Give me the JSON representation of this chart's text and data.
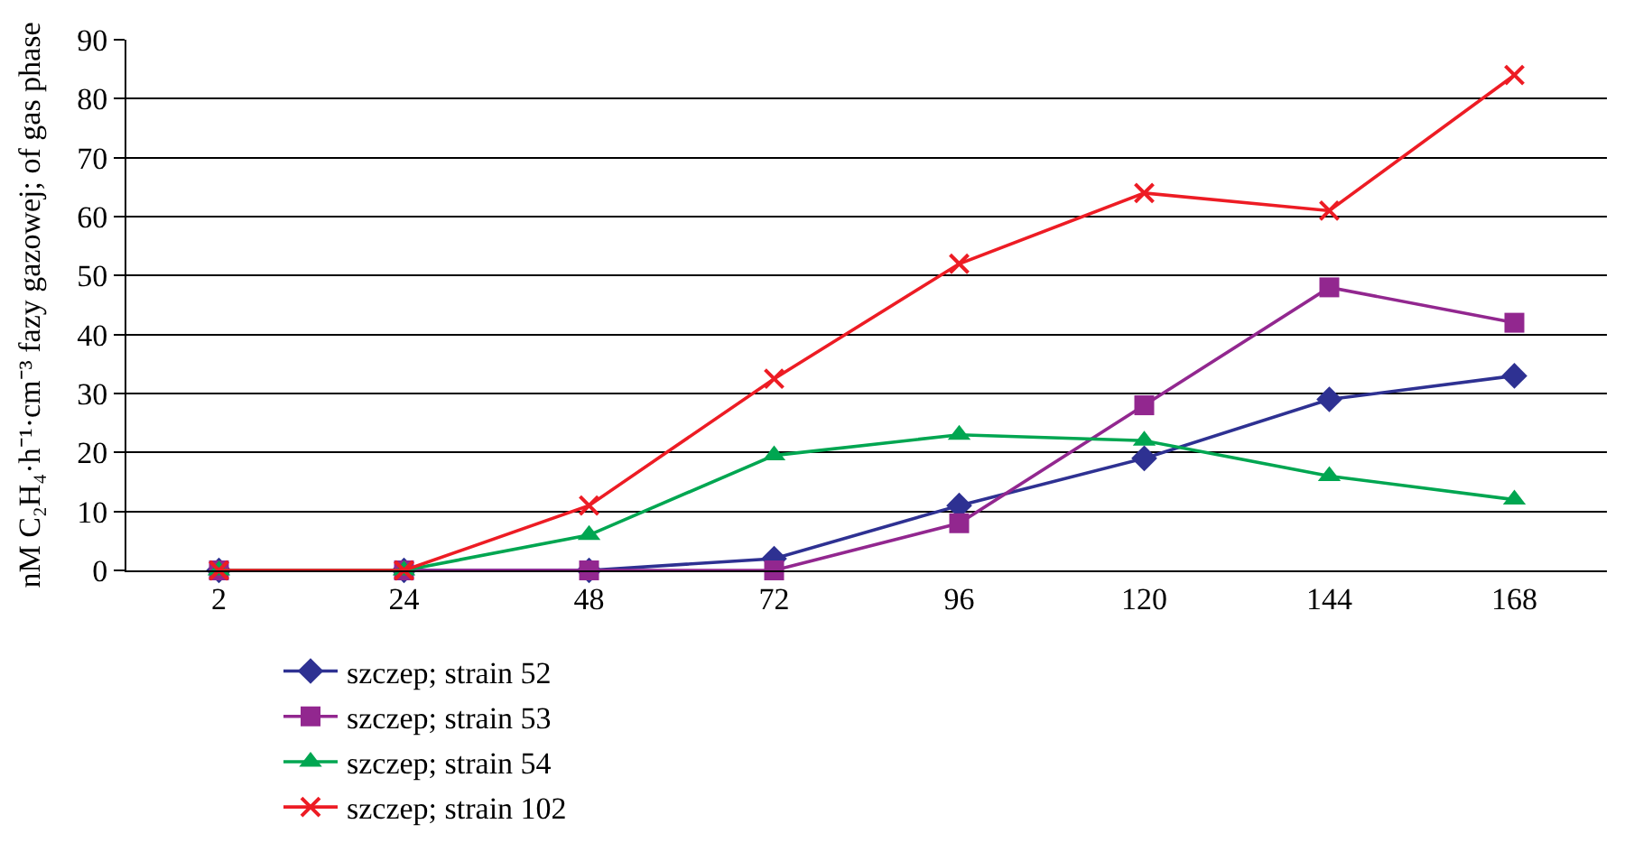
{
  "chart_data": {
    "type": "line",
    "ylabel": "nM C₂H₄·h⁻¹·cm⁻³ fazy gazowej; of gas phase",
    "categories": [
      "2",
      "24",
      "48",
      "72",
      "96",
      "120",
      "144",
      "168"
    ],
    "series": [
      {
        "name": "szczep; strain 52",
        "color": "#2e3192",
        "marker": "diamond",
        "values": [
          0,
          0,
          0,
          2,
          11,
          19,
          29,
          33
        ]
      },
      {
        "name": "szczep; strain 53",
        "color": "#92278f",
        "marker": "square",
        "values": [
          0,
          0,
          0,
          0,
          8,
          28,
          48,
          42
        ]
      },
      {
        "name": "szczep; strain 54",
        "color": "#00a651",
        "marker": "triangle",
        "values": [
          0,
          0,
          6,
          19.5,
          23,
          22,
          16,
          12
        ]
      },
      {
        "name": "szczep; strain 102",
        "color": "#ed1c24",
        "marker": "cross",
        "values": [
          0,
          0,
          11,
          32.5,
          52,
          64,
          61,
          84
        ]
      }
    ],
    "ylim": [
      0,
      90
    ],
    "yticks": [
      0,
      10,
      20,
      30,
      40,
      50,
      60,
      70,
      80,
      90
    ],
    "grid": "y",
    "legend": "bottom",
    "line_style": "solid"
  }
}
